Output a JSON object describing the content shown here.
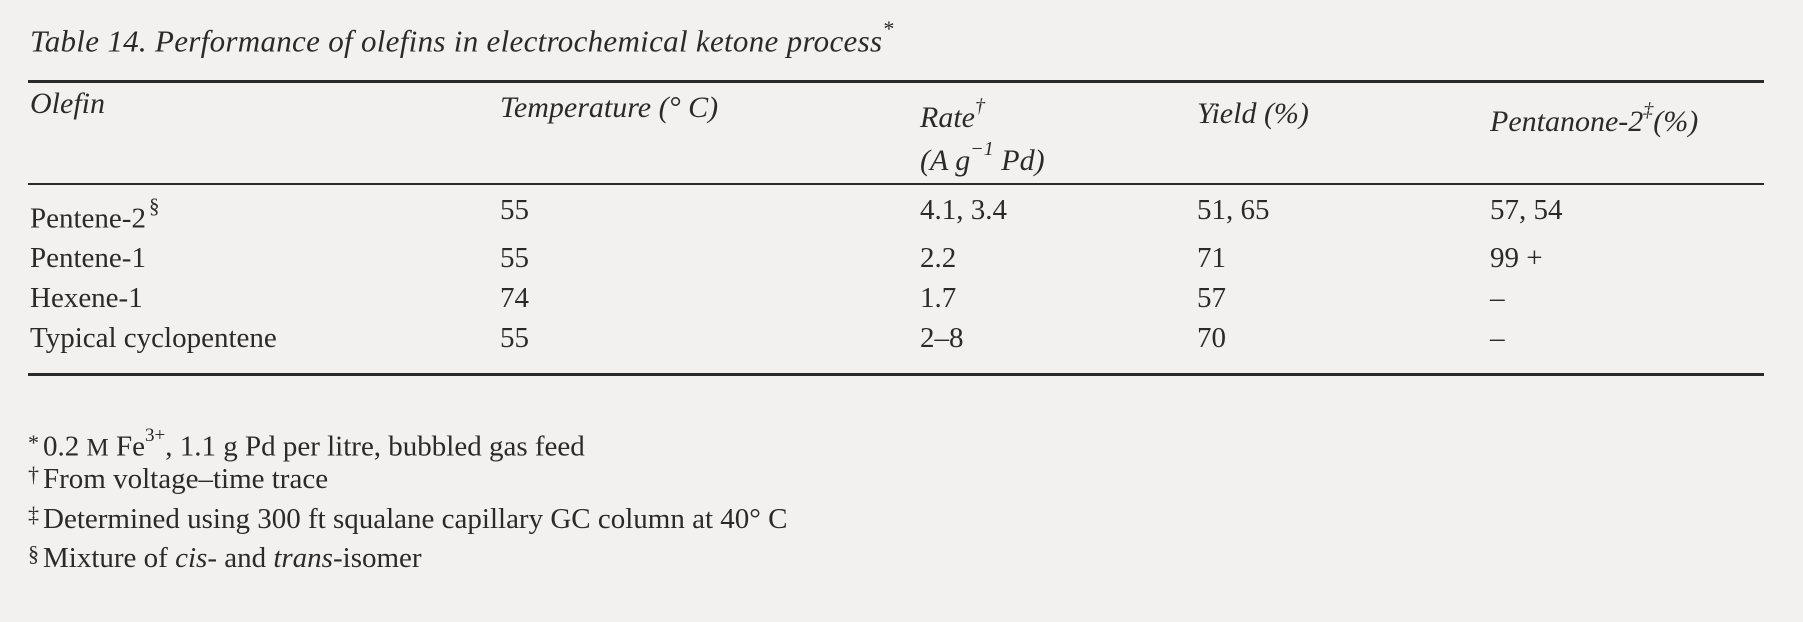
{
  "caption": {
    "text": "Table 14. Performance of olefins in electrochemical ketone process",
    "mark": "*"
  },
  "columns": {
    "olefin": "Olefin",
    "temperature": "Temperature (° C)",
    "rate": "Rate",
    "rate_mark": "†",
    "rate_unit_prefix": "(A g",
    "rate_unit_exp": "−1",
    "rate_unit_suffix": " Pd)",
    "yield": "Yield (%)",
    "pentanone": "Pentanone-2",
    "pentanone_mark": "‡",
    "pentanone_suffix": "(%)"
  },
  "rows": [
    {
      "olefin": "Pentene-2",
      "olefin_mark": "§",
      "temperature": "55",
      "rate": "4.1, 3.4",
      "yield": "51, 65",
      "pentanone": "57, 54"
    },
    {
      "olefin": "Pentene-1",
      "olefin_mark": "",
      "temperature": "55",
      "rate": "2.2",
      "yield": "71",
      "pentanone": "99 +"
    },
    {
      "olefin": "Hexene-1",
      "olefin_mark": "",
      "temperature": "74",
      "rate": "1.7",
      "yield": "57",
      "pentanone": "–"
    },
    {
      "olefin": "Typical cyclopentene",
      "olefin_mark": "",
      "temperature": "55",
      "rate": "2–8",
      "yield": "70",
      "pentanone": "–"
    }
  ],
  "footnotes": {
    "f1": {
      "mark": "*",
      "pre": "0.2 ",
      "unit": "M",
      "mid": " Fe",
      "exp": "3+",
      "post": ", 1.1 g Pd per litre, bubbled gas feed"
    },
    "f2": {
      "mark": "†",
      "text": "From voltage–time trace"
    },
    "f3": {
      "mark": "‡",
      "text": "Determined using 300 ft squalane capillary GC column at 40° C"
    },
    "f4": {
      "mark": "§",
      "pre": "Mixture of ",
      "cis": "cis",
      "mid": "- and ",
      "trans": "trans",
      "post": "-isomer"
    }
  }
}
